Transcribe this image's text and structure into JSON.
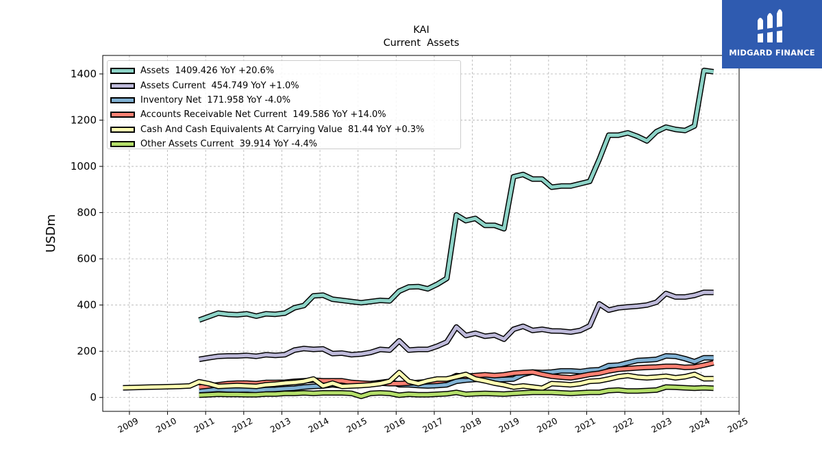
{
  "brand": {
    "name": "MIDGARD FINANCE",
    "color": "#2f5bb0"
  },
  "chart_data": {
    "type": "line",
    "title": "KAI",
    "subtitle": "Current  Assets",
    "ylabel": "USDm",
    "xlabel": "",
    "xlim": [
      2008.3,
      2025.0
    ],
    "ylim": [
      -60,
      1480
    ],
    "x_ticks": [
      "2009",
      "2010",
      "2011",
      "2012",
      "2013",
      "2014",
      "2015",
      "2016",
      "2017",
      "2018",
      "2019",
      "2020",
      "2021",
      "2022",
      "2023",
      "2024",
      "2025"
    ],
    "y_ticks": [
      0,
      200,
      400,
      600,
      800,
      1000,
      1200,
      1400
    ],
    "grid": true,
    "legend_position": "top-left",
    "series": [
      {
        "name": "Assets",
        "legend_label": "Assets  1409.426 YoY +20.6%",
        "color": "#8dd3c7",
        "x": [
          2010.83,
          2011.08,
          2011.33,
          2011.58,
          2011.83,
          2012.08,
          2012.33,
          2012.58,
          2012.83,
          2013.08,
          2013.33,
          2013.58,
          2013.83,
          2014.08,
          2014.33,
          2014.58,
          2014.83,
          2015.08,
          2015.33,
          2015.58,
          2015.83,
          2016.08,
          2016.33,
          2016.58,
          2016.83,
          2017.08,
          2017.33,
          2017.58,
          2017.83,
          2018.08,
          2018.33,
          2018.58,
          2018.83,
          2019.08,
          2019.33,
          2019.58,
          2019.83,
          2020.08,
          2020.33,
          2020.58,
          2020.83,
          2021.08,
          2021.33,
          2021.58,
          2021.83,
          2022.08,
          2022.33,
          2022.58,
          2022.83,
          2023.08,
          2023.33,
          2023.58,
          2023.83,
          2024.08,
          2024.33
        ],
        "values": [
          335,
          350,
          365,
          360,
          358,
          362,
          352,
          362,
          360,
          365,
          388,
          398,
          440,
          443,
          425,
          420,
          415,
          410,
          415,
          420,
          418,
          460,
          478,
          480,
          470,
          490,
          515,
          790,
          765,
          775,
          745,
          745,
          730,
          955,
          965,
          945,
          945,
          910,
          915,
          915,
          925,
          935,
          1030,
          1135,
          1135,
          1145,
          1130,
          1110,
          1150,
          1170,
          1160,
          1155,
          1175,
          1415,
          1409.426
        ]
      },
      {
        "name": "Assets Current",
        "legend_label": "Assets Current  454.749 YoY +1.0%",
        "color": "#bebada",
        "x": [
          2010.83,
          2011.08,
          2011.33,
          2011.58,
          2011.83,
          2012.08,
          2012.33,
          2012.58,
          2012.83,
          2013.08,
          2013.33,
          2013.58,
          2013.83,
          2014.08,
          2014.33,
          2014.58,
          2014.83,
          2015.08,
          2015.33,
          2015.58,
          2015.83,
          2016.08,
          2016.33,
          2016.58,
          2016.83,
          2017.08,
          2017.33,
          2017.58,
          2017.83,
          2018.08,
          2018.33,
          2018.58,
          2018.83,
          2019.08,
          2019.33,
          2019.58,
          2019.83,
          2020.08,
          2020.33,
          2020.58,
          2020.83,
          2021.08,
          2021.33,
          2021.58,
          2021.83,
          2022.08,
          2022.33,
          2022.58,
          2022.83,
          2023.08,
          2023.33,
          2023.58,
          2023.83,
          2024.08,
          2024.33
        ],
        "values": [
          165,
          172,
          178,
          180,
          180,
          182,
          178,
          185,
          182,
          185,
          205,
          212,
          208,
          210,
          190,
          192,
          185,
          188,
          195,
          208,
          205,
          245,
          205,
          208,
          208,
          222,
          240,
          305,
          268,
          278,
          265,
          270,
          252,
          295,
          308,
          290,
          295,
          288,
          287,
          283,
          290,
          310,
          405,
          378,
          388,
          392,
          395,
          400,
          412,
          450,
          435,
          435,
          442,
          455,
          454.749
        ]
      },
      {
        "name": "Inventory Net",
        "legend_label": "Inventory Net  171.958 YoY -4.0%",
        "color": "#80b1d3",
        "x": [
          2010.83,
          2011.08,
          2011.33,
          2011.58,
          2011.83,
          2012.08,
          2012.33,
          2012.58,
          2012.83,
          2013.08,
          2013.33,
          2013.58,
          2013.83,
          2014.08,
          2014.33,
          2014.58,
          2014.83,
          2015.08,
          2015.33,
          2015.58,
          2015.83,
          2016.08,
          2016.33,
          2016.58,
          2016.83,
          2017.08,
          2017.33,
          2017.58,
          2017.83,
          2018.08,
          2018.33,
          2018.58,
          2018.83,
          2019.08,
          2019.33,
          2019.58,
          2019.83,
          2020.08,
          2020.33,
          2020.58,
          2020.83,
          2021.08,
          2021.33,
          2021.58,
          2021.83,
          2022.08,
          2022.33,
          2022.58,
          2022.83,
          2023.08,
          2023.33,
          2023.58,
          2023.83,
          2024.08,
          2024.33
        ],
        "values": [
          30,
          32,
          35,
          33,
          32,
          33,
          30,
          34,
          35,
          38,
          40,
          45,
          48,
          50,
          55,
          50,
          52,
          58,
          60,
          65,
          70,
          55,
          55,
          52,
          50,
          52,
          55,
          70,
          75,
          78,
          80,
          76,
          78,
          80,
          100,
          110,
          108,
          110,
          115,
          115,
          112,
          118,
          120,
          138,
          140,
          150,
          160,
          162,
          165,
          180,
          178,
          168,
          155,
          172,
          171.958
        ]
      },
      {
        "name": "Accounts Receivable Net Current",
        "legend_label": "Accounts Receivable Net Current  149.586 YoY +14.0%",
        "color": "#fb8072",
        "x": [
          2010.83,
          2011.08,
          2011.33,
          2011.58,
          2011.83,
          2012.08,
          2012.33,
          2012.58,
          2012.83,
          2013.08,
          2013.33,
          2013.58,
          2013.83,
          2014.08,
          2014.33,
          2014.58,
          2014.83,
          2015.08,
          2015.33,
          2015.58,
          2015.83,
          2016.08,
          2016.33,
          2016.58,
          2016.83,
          2017.08,
          2017.33,
          2017.58,
          2017.83,
          2018.08,
          2018.33,
          2018.58,
          2018.83,
          2019.08,
          2019.33,
          2019.58,
          2019.83,
          2020.08,
          2020.33,
          2020.58,
          2020.83,
          2021.08,
          2021.33,
          2021.58,
          2021.83,
          2022.08,
          2022.33,
          2022.58,
          2022.83,
          2023.08,
          2023.33,
          2023.58,
          2023.83,
          2024.08,
          2024.33
        ],
        "values": [
          45,
          50,
          55,
          60,
          62,
          62,
          60,
          65,
          65,
          66,
          70,
          72,
          75,
          72,
          72,
          72,
          65,
          62,
          60,
          62,
          60,
          60,
          62,
          65,
          68,
          70,
          75,
          95,
          92,
          95,
          98,
          95,
          98,
          105,
          108,
          110,
          100,
          92,
          88,
          85,
          92,
          100,
          105,
          115,
          122,
          125,
          128,
          130,
          132,
          135,
          135,
          130,
          132,
          140,
          149.586
        ]
      },
      {
        "name": "Cash And Cash Equivalents At Carrying Value",
        "legend_label": "Cash And Cash Equivalents At Carrying Value  81.44 YoY +0.3%",
        "color": "#ffffb3",
        "x": [
          2008.83,
          2009.08,
          2009.33,
          2009.58,
          2009.83,
          2010.08,
          2010.33,
          2010.58,
          2010.83,
          2011.08,
          2011.33,
          2011.58,
          2011.83,
          2012.08,
          2012.33,
          2012.58,
          2012.83,
          2013.08,
          2013.33,
          2013.58,
          2013.83,
          2014.08,
          2014.33,
          2014.58,
          2014.83,
          2015.08,
          2015.33,
          2015.58,
          2015.83,
          2016.08,
          2016.33,
          2016.58,
          2016.83,
          2017.08,
          2017.33,
          2017.58,
          2017.83,
          2018.08,
          2018.33,
          2018.58,
          2018.83,
          2019.08,
          2019.33,
          2019.58,
          2019.83,
          2020.08,
          2020.33,
          2020.58,
          2020.83,
          2021.08,
          2021.33,
          2021.58,
          2021.83,
          2022.08,
          2022.33,
          2022.58,
          2022.83,
          2023.08,
          2023.33,
          2023.58,
          2023.83,
          2024.08,
          2024.33
        ],
        "values": [
          42,
          43,
          44,
          45,
          46,
          47,
          48,
          50,
          68,
          60,
          48,
          50,
          52,
          50,
          48,
          55,
          58,
          62,
          65,
          70,
          80,
          50,
          62,
          48,
          50,
          52,
          55,
          60,
          70,
          108,
          70,
          60,
          72,
          80,
          80,
          90,
          100,
          80,
          72,
          62,
          55,
          45,
          50,
          45,
          40,
          60,
          58,
          55,
          60,
          70,
          72,
          80,
          90,
          95,
          88,
          85,
          88,
          92,
          85,
          90,
          100,
          81,
          81.44
        ]
      },
      {
        "name": "Other Assets Current",
        "legend_label": "Other Assets Current  39.914 YoY -4.4%",
        "color": "#b3de69",
        "x": [
          2010.83,
          2011.08,
          2011.33,
          2011.58,
          2011.83,
          2012.08,
          2012.33,
          2012.58,
          2012.83,
          2013.08,
          2013.33,
          2013.58,
          2013.83,
          2014.08,
          2014.33,
          2014.58,
          2014.83,
          2015.08,
          2015.33,
          2015.58,
          2015.83,
          2016.08,
          2016.33,
          2016.58,
          2016.83,
          2017.08,
          2017.33,
          2017.58,
          2017.83,
          2018.08,
          2018.33,
          2018.58,
          2018.83,
          2019.08,
          2019.33,
          2019.58,
          2019.83,
          2020.08,
          2020.33,
          2020.58,
          2020.83,
          2021.08,
          2021.33,
          2021.58,
          2021.83,
          2022.08,
          2022.33,
          2022.58,
          2022.83,
          2023.08,
          2023.33,
          2023.58,
          2023.83,
          2024.08,
          2024.33
        ],
        "values": [
          10,
          12,
          14,
          13,
          13,
          12,
          12,
          15,
          15,
          18,
          18,
          20,
          18,
          20,
          20,
          20,
          18,
          5,
          18,
          20,
          18,
          10,
          14,
          12,
          12,
          14,
          16,
          22,
          14,
          16,
          18,
          16,
          15,
          18,
          20,
          22,
          22,
          22,
          20,
          18,
          20,
          22,
          22,
          30,
          32,
          28,
          28,
          30,
          32,
          45,
          44,
          42,
          40,
          42,
          39.914
        ]
      }
    ]
  }
}
